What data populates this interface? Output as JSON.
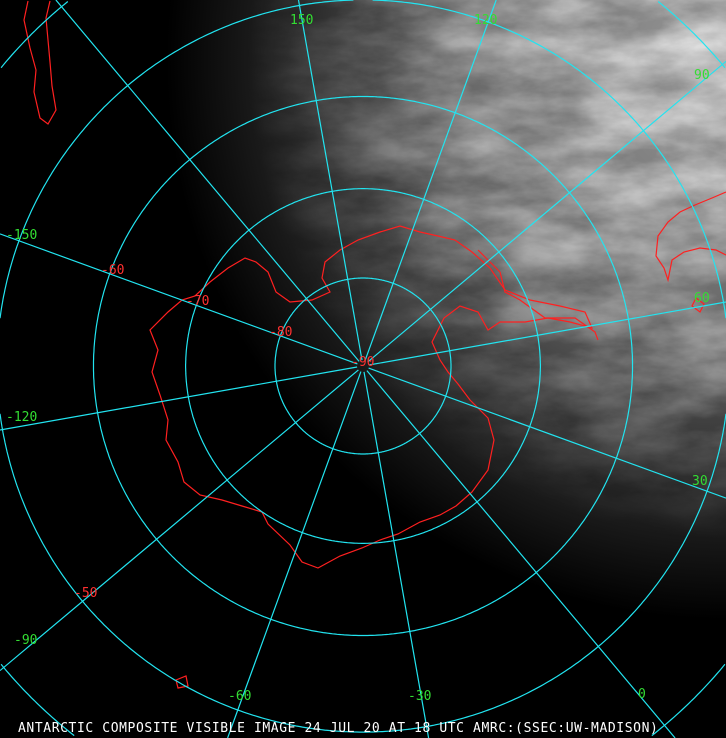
{
  "caption": "ANTARCTIC COMPOSITE VISIBLE IMAGE 24 JUL 20 AT 18 UTC AMRC:(SSEC:UW-MADISON)",
  "colors": {
    "grid": "#22e4f0",
    "coastline": "#ff2020",
    "longitude_label": "#33dd33",
    "latitude_label": "#ff3030",
    "caption": "#ffffff"
  },
  "projection": "polar stereographic, south pole centered",
  "longitude_labels": [
    {
      "value": 150,
      "text": "150"
    },
    {
      "value": 120,
      "text": "120"
    },
    {
      "value": 90,
      "text": "90"
    },
    {
      "value": 60,
      "text": "60"
    },
    {
      "value": 30,
      "text": "30"
    },
    {
      "value": 0,
      "text": "0"
    },
    {
      "value": -30,
      "text": "-30"
    },
    {
      "value": -60,
      "text": "-60"
    },
    {
      "value": -90,
      "text": "-90"
    },
    {
      "value": -120,
      "text": "-120"
    },
    {
      "value": -150,
      "text": "-150"
    }
  ],
  "latitude_labels": [
    {
      "value": -50,
      "text": "-50"
    },
    {
      "value": -60,
      "text": "-60"
    },
    {
      "value": -70,
      "text": "-70"
    },
    {
      "value": -80,
      "text": "-80"
    },
    {
      "value": -90,
      "text": "-90"
    }
  ],
  "meridians": [
    0,
    30,
    60,
    90,
    120,
    150,
    180,
    -150,
    -120,
    -90,
    -60,
    -30
  ],
  "parallels": [
    -80,
    -70,
    -60,
    -50,
    -40
  ]
}
